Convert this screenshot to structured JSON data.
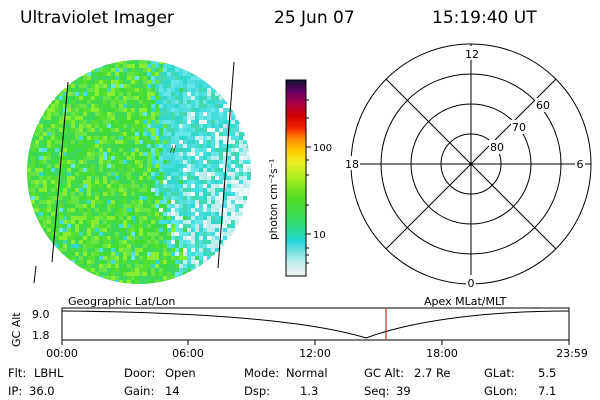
{
  "header": {
    "title": "Ultraviolet Imager",
    "date": "25 Jun 07",
    "time": "15:19:40 UT"
  },
  "colorbar": {
    "unit_label": "photon cm⁻²s⁻¹",
    "ticks": [
      "100",
      "10"
    ]
  },
  "polar": {
    "mlt_labels": [
      "12",
      "6",
      "0",
      "18"
    ],
    "lat_labels": [
      "60",
      "70",
      "80"
    ]
  },
  "timeline": {
    "left_label": "Geographic Lat/Lon",
    "right_label": "Apex  MLat/MLT",
    "y_label": "GC Alt",
    "y_ticks": [
      "9.0",
      "1.8"
    ],
    "x_ticks": [
      "00:00",
      "06:00",
      "12:00",
      "18:00",
      "23:59"
    ],
    "curve_color": "#000000",
    "marker_color": "#c00000"
  },
  "info": {
    "flt_label": "Flt:",
    "flt_value": "LBHL",
    "ip_label": "IP:",
    "ip_value": "36.0",
    "door_label": "Door:",
    "door_value": "Open",
    "gain_label": "Gain:",
    "gain_value": "14",
    "mode_label": "Mode:",
    "mode_value": "Normal",
    "dsp_label": "Dsp:",
    "dsp_value": "1.3",
    "gcalt_label": "GC Alt:",
    "gcalt_value": "2.7 Re",
    "seq_label": "Seq:",
    "seq_value": "39",
    "glat_label": "GLat:",
    "glat_value": "5.5",
    "glon_label": "GLon:",
    "glon_value": "7.1"
  },
  "colors": {
    "image_green": "#44dd33",
    "image_cyan": "#55e0e0",
    "image_white": "#dff6f6"
  }
}
